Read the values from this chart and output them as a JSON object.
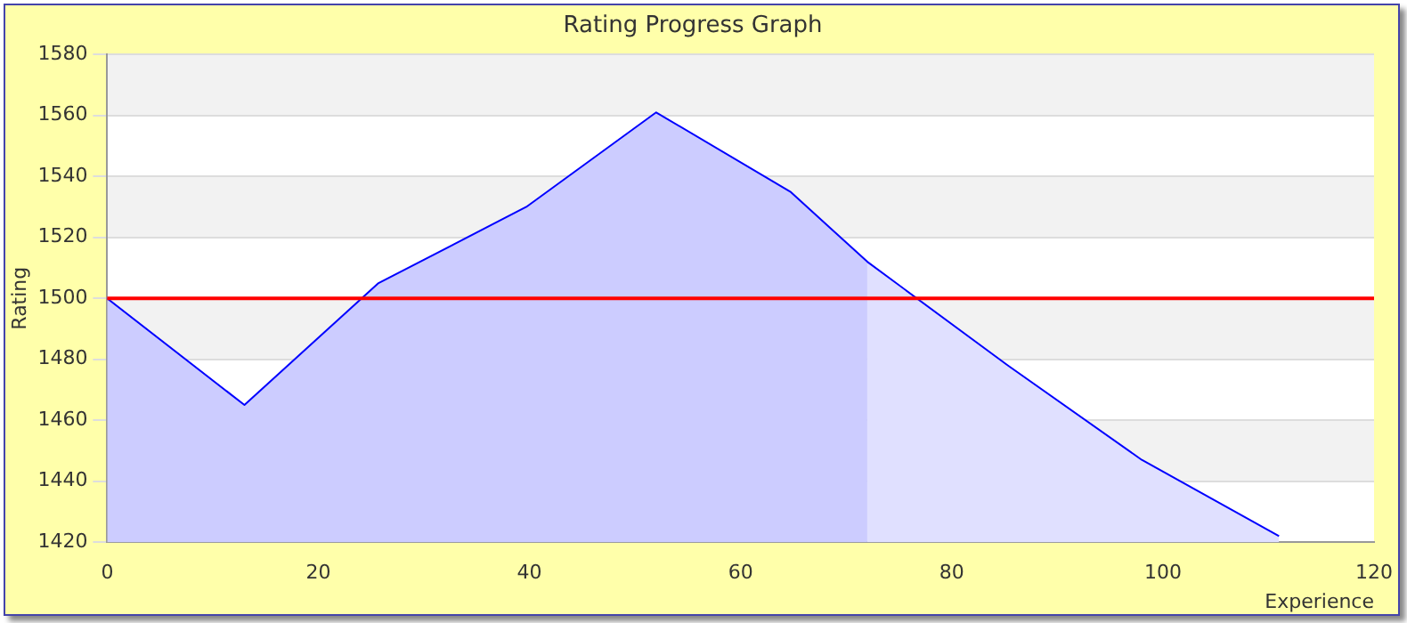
{
  "chart_data": {
    "type": "area",
    "title": "Rating Progress Graph",
    "xlabel": "Experience",
    "ylabel": "Rating",
    "series": [
      {
        "type": "area",
        "color": "#ccccff",
        "x": [
          0,
          13,
          25.7,
          39.7,
          52,
          64.7,
          72
        ],
        "values": [
          1500,
          1465,
          1505,
          1530,
          1561,
          1535,
          1512
        ]
      },
      {
        "type": "area",
        "color": "#e0e0ff",
        "x": [
          72,
          85.3,
          98,
          111
        ],
        "values": [
          1512,
          1478,
          1447,
          1422
        ]
      },
      {
        "type": "line",
        "color": "#0000ff",
        "x": [
          0,
          13,
          25.7,
          39.7,
          52,
          64.7,
          72,
          85.3,
          98,
          111
        ],
        "values": [
          1500,
          1465,
          1505,
          1530,
          1561,
          1535,
          1512,
          1478,
          1447,
          1422
        ]
      }
    ],
    "xlim": [
      0,
      120
    ],
    "xticks": [
      0,
      20,
      40,
      60,
      80,
      100,
      120
    ],
    "ylim": [
      1420,
      1580
    ],
    "yticks": [
      1420,
      1440,
      1460,
      1480,
      1500,
      1520,
      1540,
      1560,
      1580
    ],
    "ref_lines": [
      {
        "axis": "y",
        "value": 1500,
        "color": "#ff0000"
      }
    ],
    "grid": "y",
    "legend": false,
    "marker": "none",
    "line_style": "solid"
  }
}
